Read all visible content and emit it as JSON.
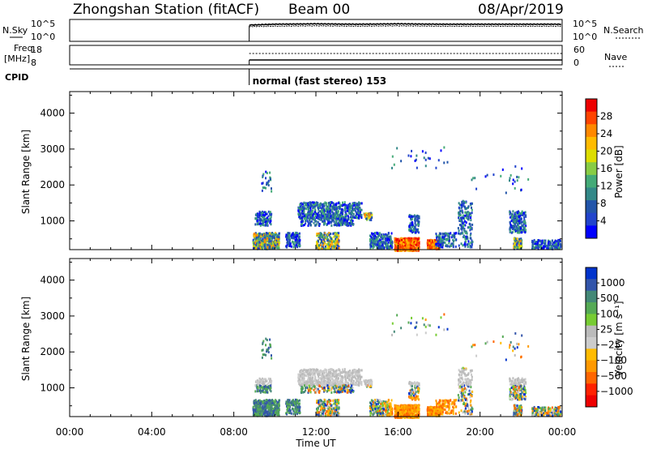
{
  "header": {
    "station": "Zhongshan Station (fitACF)",
    "beam": "Beam 00",
    "date": "08/Apr/2019"
  },
  "top_panels": {
    "nsky_label": "N.Sky",
    "nsearch_label": "N.Search",
    "freq_label_1": "Freq.",
    "freq_label_2": "[MHz]",
    "nave_label": "Nave",
    "cpid_label": "CPID",
    "cpid_text": "normal (fast stereo) 153",
    "noise_ticks_left": [
      "10^5",
      "10^0"
    ],
    "noise_ticks_right": [
      "10^5",
      "10^0"
    ],
    "freq_ticks": [
      "18",
      "8"
    ],
    "nave_ticks": [
      "60",
      "0"
    ]
  },
  "power_colorbar": {
    "label": "Power [dB]",
    "ticks": [
      "28",
      "24",
      "20",
      "16",
      "12",
      "8",
      "4"
    ],
    "colors": [
      "#ee0000",
      "#ff4400",
      "#ff8800",
      "#ffbb00",
      "#dddd00",
      "#88cc44",
      "#44aa77",
      "#338888",
      "#2255aa",
      "#2244cc",
      "#0000ff"
    ]
  },
  "velocity_colorbar": {
    "label": "Velocity [m s⁻¹]",
    "ticks": [
      "1000",
      "500",
      "100",
      "25",
      "−25",
      "−100",
      "−500",
      "−1000"
    ],
    "colors": [
      "#0033cc",
      "#3355aa",
      "#448877",
      "#55aa55",
      "#77cc33",
      "#bbbbbb",
      "#cccccc",
      "#ffbb00",
      "#ff9900",
      "#ff6600",
      "#ff2200",
      "#ee0000"
    ]
  },
  "chart_data": [
    {
      "type": "heatmap",
      "name": "power",
      "xlabel": "",
      "ylabel": "Slant Range [km]",
      "xlim": [
        0,
        24
      ],
      "ylim": [
        200,
        4600
      ],
      "yticks": [
        1000,
        2000,
        3000,
        4000
      ],
      "xticks": [
        "00:00",
        "04:00",
        "08:00",
        "12:00",
        "16:00",
        "20:00",
        "00:00"
      ],
      "zlabel": "Power [dB]",
      "zlim": [
        0,
        32
      ]
    },
    {
      "type": "heatmap",
      "name": "velocity",
      "xlabel": "Time UT",
      "ylabel": "Slant Range [km]",
      "xlim": [
        0,
        24
      ],
      "ylim": [
        200,
        4600
      ],
      "yticks": [
        1000,
        2000,
        3000,
        4000
      ],
      "xticks": [
        "00:00",
        "04:00",
        "08:00",
        "12:00",
        "16:00",
        "20:00",
        "00:00"
      ],
      "zlabel": "Velocity [m s⁻¹]",
      "zlim": [
        -1000,
        1000
      ]
    },
    {
      "type": "line",
      "name": "noise",
      "x": [
        8.75,
        10,
        12,
        14,
        16,
        18,
        20,
        22,
        24
      ],
      "series": [
        {
          "name": "N.Sky",
          "values": [
            4.2,
            4.4,
            4.5,
            4.4,
            4.5,
            4.4,
            4.4,
            4.4,
            4.4
          ]
        },
        {
          "name": "N.Search",
          "values": [
            3.8,
            3.9,
            4.0,
            3.9,
            4.0,
            3.9,
            3.9,
            3.9,
            3.9
          ]
        }
      ]
    },
    {
      "type": "line",
      "name": "frequency",
      "x": [
        8.75,
        24
      ],
      "series": [
        {
          "name": "Freq.",
          "values": [
            10.5,
            10.5
          ]
        },
        {
          "name": "Nave",
          "values": [
            35,
            35
          ]
        }
      ]
    }
  ]
}
